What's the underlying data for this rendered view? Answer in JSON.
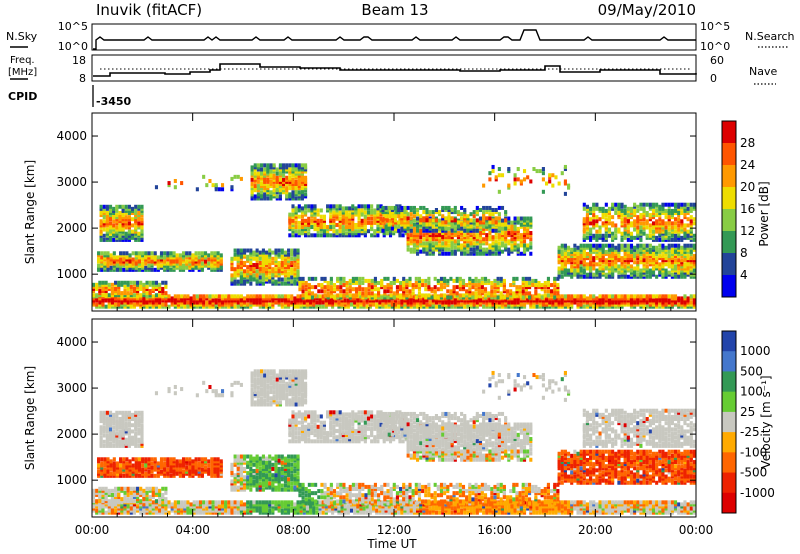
{
  "header": {
    "station": "Inuvik (fitACF)",
    "beam": "Beam 13",
    "date": "09/May/2010"
  },
  "panels": {
    "nsky": {
      "left_label": "N.Sky",
      "right_label": "N.Search",
      "left_ticks": [
        "10^5",
        "10^0"
      ],
      "right_ticks": [
        "10^5",
        "10^0"
      ]
    },
    "freq": {
      "left_label_line1": "Freq.",
      "left_label_line2": "[MHz]",
      "right_label": "Nave",
      "left_ticks": [
        "18",
        "8"
      ],
      "right_ticks": [
        "60",
        "0"
      ]
    },
    "cpid": {
      "label": "CPID",
      "value": "-3450"
    }
  },
  "chart_data": [
    {
      "type": "heatmap",
      "name": "power",
      "ylabel": "Slant Range [km]",
      "xlabel": "",
      "ylim": [
        200,
        4500
      ],
      "yticks": [
        1000,
        2000,
        3000,
        4000
      ],
      "colorbar": {
        "label": "Power [dB]",
        "ticks": [
          "28",
          "24",
          "20",
          "16",
          "12",
          "8",
          "4"
        ],
        "colors": [
          "#dd0000",
          "#ff5500",
          "#ff9900",
          "#eedd00",
          "#88cc44",
          "#339955",
          "#224499",
          "#0000ee"
        ]
      }
    },
    {
      "type": "heatmap",
      "name": "velocity",
      "ylabel": "Slant Range [km]",
      "xlabel": "Time UT",
      "xticks": [
        "00:00",
        "04:00",
        "08:00",
        "12:00",
        "16:00",
        "20:00",
        "00:00"
      ],
      "ylim": [
        200,
        4500
      ],
      "yticks": [
        1000,
        2000,
        3000,
        4000
      ],
      "colorbar": {
        "label": "Velocity [m s⁻¹]",
        "ticks": [
          "1000",
          "500",
          "100",
          "25",
          "-25",
          "-100",
          "-500",
          "-1000"
        ],
        "colors": [
          "#2244aa",
          "#4477cc",
          "#339955",
          "#66cc33",
          "#c8c8c0",
          "#ffaa00",
          "#ff6600",
          "#ee2200",
          "#dd0000"
        ]
      }
    }
  ],
  "colors": {
    "axis": "#000000",
    "background": "#ffffff"
  }
}
